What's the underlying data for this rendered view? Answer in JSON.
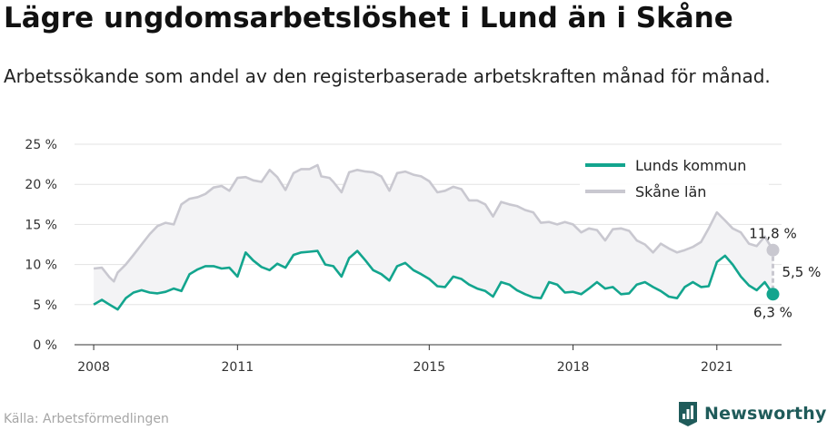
{
  "title": "Lägre ungdomsarbetslöshet i Lund än i Skåne",
  "subtitle": "Arbetssökande som andel av den registerbaserade arbetskraften månad för månad.",
  "source": "Källa: Arbetsförmedlingen",
  "brand": {
    "name": "Newsworthy"
  },
  "colors": {
    "lund": "#13a58e",
    "skane": "#c9c8d0",
    "fill": "#f3f3f5",
    "grid": "#e3e3e3",
    "axis": "#333333",
    "brand": "#1f5b5a"
  },
  "chart_data": {
    "type": "line",
    "title": "Lägre ungdomsarbetslöshet i Lund än i Skåne",
    "xlabel": "",
    "ylabel": "",
    "ylim": [
      0,
      25
    ],
    "xlim": [
      2007.6,
      2022.35
    ],
    "y_ticks": [
      0,
      5,
      10,
      15,
      20,
      25
    ],
    "y_tick_labels": [
      "0 %",
      "5 %",
      "10 %",
      "15 %",
      "20 %",
      "25 %"
    ],
    "x_ticks": [
      2008,
      2011,
      2015,
      2018,
      2021
    ],
    "x_tick_labels": [
      "2008",
      "2011",
      "2015",
      "2018",
      "2021"
    ],
    "legend": {
      "position": "top-right",
      "entries": [
        "Lunds kommun",
        "Skåne län"
      ]
    },
    "series": [
      {
        "name": "Skåne län",
        "points": [
          [
            2008.0,
            9.5
          ],
          [
            2008.17,
            9.6
          ],
          [
            2008.33,
            8.4
          ],
          [
            2008.42,
            7.9
          ],
          [
            2008.5,
            9.0
          ],
          [
            2008.67,
            10.0
          ],
          [
            2008.83,
            11.2
          ],
          [
            2009.0,
            12.5
          ],
          [
            2009.17,
            13.8
          ],
          [
            2009.33,
            14.8
          ],
          [
            2009.5,
            15.2
          ],
          [
            2009.67,
            15.0
          ],
          [
            2009.83,
            17.5
          ],
          [
            2010.0,
            18.2
          ],
          [
            2010.17,
            18.4
          ],
          [
            2010.33,
            18.8
          ],
          [
            2010.5,
            19.6
          ],
          [
            2010.67,
            19.8
          ],
          [
            2010.83,
            19.2
          ],
          [
            2011.0,
            20.8
          ],
          [
            2011.17,
            20.9
          ],
          [
            2011.33,
            20.5
          ],
          [
            2011.5,
            20.3
          ],
          [
            2011.67,
            21.8
          ],
          [
            2011.83,
            20.9
          ],
          [
            2012.0,
            19.3
          ],
          [
            2012.17,
            21.4
          ],
          [
            2012.33,
            21.9
          ],
          [
            2012.5,
            21.9
          ],
          [
            2012.67,
            22.4
          ],
          [
            2012.75,
            21.0
          ],
          [
            2012.92,
            20.8
          ],
          [
            2013.0,
            20.3
          ],
          [
            2013.17,
            19.0
          ],
          [
            2013.33,
            21.5
          ],
          [
            2013.5,
            21.8
          ],
          [
            2013.67,
            21.6
          ],
          [
            2013.83,
            21.5
          ],
          [
            2014.0,
            21.0
          ],
          [
            2014.17,
            19.2
          ],
          [
            2014.33,
            21.4
          ],
          [
            2014.5,
            21.6
          ],
          [
            2014.67,
            21.2
          ],
          [
            2014.83,
            21.0
          ],
          [
            2015.0,
            20.4
          ],
          [
            2015.17,
            19.0
          ],
          [
            2015.33,
            19.2
          ],
          [
            2015.5,
            19.7
          ],
          [
            2015.67,
            19.4
          ],
          [
            2015.83,
            18.0
          ],
          [
            2016.0,
            18.0
          ],
          [
            2016.17,
            17.5
          ],
          [
            2016.33,
            16.0
          ],
          [
            2016.5,
            17.8
          ],
          [
            2016.67,
            17.5
          ],
          [
            2016.83,
            17.3
          ],
          [
            2017.0,
            16.8
          ],
          [
            2017.17,
            16.5
          ],
          [
            2017.33,
            15.2
          ],
          [
            2017.5,
            15.3
          ],
          [
            2017.67,
            15.0
          ],
          [
            2017.83,
            15.3
          ],
          [
            2018.0,
            15.0
          ],
          [
            2018.17,
            14.0
          ],
          [
            2018.33,
            14.5
          ],
          [
            2018.5,
            14.3
          ],
          [
            2018.67,
            13.0
          ],
          [
            2018.83,
            14.4
          ],
          [
            2019.0,
            14.5
          ],
          [
            2019.17,
            14.2
          ],
          [
            2019.33,
            13.0
          ],
          [
            2019.5,
            12.5
          ],
          [
            2019.67,
            11.5
          ],
          [
            2019.83,
            12.6
          ],
          [
            2020.0,
            12.0
          ],
          [
            2020.17,
            11.5
          ],
          [
            2020.33,
            11.8
          ],
          [
            2020.5,
            12.2
          ],
          [
            2020.67,
            12.8
          ],
          [
            2020.83,
            14.5
          ],
          [
            2021.0,
            16.5
          ],
          [
            2021.17,
            15.5
          ],
          [
            2021.33,
            14.5
          ],
          [
            2021.5,
            14.0
          ],
          [
            2021.67,
            12.6
          ],
          [
            2021.83,
            12.3
          ],
          [
            2022.0,
            13.5
          ],
          [
            2022.17,
            11.8
          ]
        ]
      },
      {
        "name": "Lunds kommun",
        "points": [
          [
            2008.0,
            5.0
          ],
          [
            2008.17,
            5.6
          ],
          [
            2008.33,
            5.0
          ],
          [
            2008.5,
            4.4
          ],
          [
            2008.67,
            5.8
          ],
          [
            2008.83,
            6.5
          ],
          [
            2009.0,
            6.8
          ],
          [
            2009.17,
            6.5
          ],
          [
            2009.33,
            6.4
          ],
          [
            2009.5,
            6.6
          ],
          [
            2009.67,
            7.0
          ],
          [
            2009.83,
            6.7
          ],
          [
            2010.0,
            8.8
          ],
          [
            2010.17,
            9.4
          ],
          [
            2010.33,
            9.8
          ],
          [
            2010.5,
            9.8
          ],
          [
            2010.67,
            9.5
          ],
          [
            2010.83,
            9.6
          ],
          [
            2011.0,
            8.5
          ],
          [
            2011.17,
            11.5
          ],
          [
            2011.33,
            10.5
          ],
          [
            2011.5,
            9.7
          ],
          [
            2011.67,
            9.3
          ],
          [
            2011.83,
            10.1
          ],
          [
            2012.0,
            9.6
          ],
          [
            2012.17,
            11.2
          ],
          [
            2012.33,
            11.5
          ],
          [
            2012.5,
            11.6
          ],
          [
            2012.67,
            11.7
          ],
          [
            2012.83,
            10.0
          ],
          [
            2013.0,
            9.8
          ],
          [
            2013.17,
            8.5
          ],
          [
            2013.33,
            10.8
          ],
          [
            2013.5,
            11.7
          ],
          [
            2013.67,
            10.5
          ],
          [
            2013.83,
            9.3
          ],
          [
            2014.0,
            8.8
          ],
          [
            2014.17,
            8.0
          ],
          [
            2014.33,
            9.8
          ],
          [
            2014.5,
            10.2
          ],
          [
            2014.67,
            9.3
          ],
          [
            2014.83,
            8.8
          ],
          [
            2015.0,
            8.2
          ],
          [
            2015.17,
            7.3
          ],
          [
            2015.33,
            7.2
          ],
          [
            2015.5,
            8.5
          ],
          [
            2015.67,
            8.2
          ],
          [
            2015.83,
            7.5
          ],
          [
            2016.0,
            7.0
          ],
          [
            2016.17,
            6.7
          ],
          [
            2016.33,
            6.0
          ],
          [
            2016.5,
            7.8
          ],
          [
            2016.67,
            7.5
          ],
          [
            2016.83,
            6.8
          ],
          [
            2017.0,
            6.3
          ],
          [
            2017.17,
            5.9
          ],
          [
            2017.33,
            5.8
          ],
          [
            2017.5,
            7.8
          ],
          [
            2017.67,
            7.5
          ],
          [
            2017.83,
            6.5
          ],
          [
            2018.0,
            6.6
          ],
          [
            2018.17,
            6.3
          ],
          [
            2018.33,
            7.0
          ],
          [
            2018.5,
            7.8
          ],
          [
            2018.67,
            7.0
          ],
          [
            2018.83,
            7.2
          ],
          [
            2019.0,
            6.3
          ],
          [
            2019.17,
            6.4
          ],
          [
            2019.33,
            7.5
          ],
          [
            2019.5,
            7.8
          ],
          [
            2019.67,
            7.2
          ],
          [
            2019.83,
            6.7
          ],
          [
            2020.0,
            6.0
          ],
          [
            2020.17,
            5.8
          ],
          [
            2020.33,
            7.2
          ],
          [
            2020.5,
            7.8
          ],
          [
            2020.67,
            7.2
          ],
          [
            2020.83,
            7.3
          ],
          [
            2021.0,
            10.3
          ],
          [
            2021.17,
            11.1
          ],
          [
            2021.33,
            10.0
          ],
          [
            2021.5,
            8.5
          ],
          [
            2021.67,
            7.4
          ],
          [
            2021.83,
            6.8
          ],
          [
            2022.0,
            7.8
          ],
          [
            2022.17,
            6.3
          ]
        ]
      }
    ],
    "annotations": {
      "skane_last": "11,8 %",
      "lund_last": "6,3 %",
      "gap": "5,5 %"
    }
  }
}
